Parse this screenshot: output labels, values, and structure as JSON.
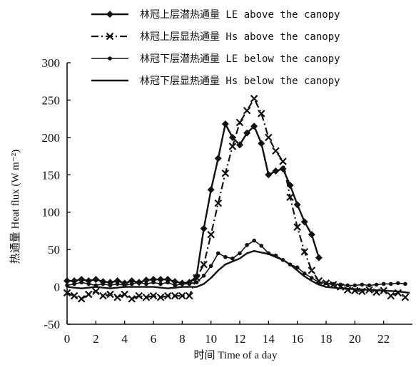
{
  "chart_data": {
    "type": "line",
    "xlabel": "时间 Time of a day",
    "ylabel": "热通量 Heat flux (W m⁻²)",
    "xlim": [
      0,
      24
    ],
    "ylim": [
      -50,
      300
    ],
    "xticks": [
      "0",
      "2",
      "4",
      "6",
      "8",
      "10",
      "12",
      "14",
      "16",
      "18",
      "20",
      "22"
    ],
    "yticks": [
      "300",
      "250",
      "200",
      "150",
      "100",
      "50",
      "0",
      "-50"
    ],
    "legend_position": "top-right",
    "series": [
      {
        "name": "林冠上层潜热通量 LE above the canopy",
        "marker": "diamond",
        "line": "solid",
        "x": [
          0,
          0.5,
          1,
          1.5,
          2,
          2.5,
          3,
          3.5,
          4,
          4.5,
          5,
          5.5,
          6,
          6.5,
          7,
          7.5,
          8,
          8.5,
          9,
          9.5,
          10,
          10.5,
          11,
          11.5,
          12,
          12.5,
          13,
          13.5,
          14,
          14.5,
          15,
          15.5,
          16,
          16.5,
          17,
          17.5
        ],
        "y": [
          8,
          8,
          10,
          8,
          10,
          7,
          6,
          8,
          5,
          8,
          6,
          9,
          10,
          10,
          10,
          7,
          5,
          6,
          14,
          78,
          130,
          172,
          218,
          200,
          190,
          206,
          215,
          192,
          150,
          155,
          158,
          136,
          110,
          87,
          70,
          39
        ]
      },
      {
        "name": "林冠上层显热通量 Hs above the canopy",
        "marker": "x",
        "line": "dash-dot",
        "x": [
          0,
          0.5,
          1,
          1.5,
          2,
          2.5,
          3,
          3.5,
          4,
          4.5,
          5,
          5.5,
          6,
          6.5,
          7,
          7.5,
          8,
          8.5,
          9,
          9.5,
          10,
          10.5,
          11,
          11.5,
          12,
          12.5,
          13,
          13.5,
          14,
          14.5,
          15,
          15.5,
          16,
          16.5,
          17,
          17.5,
          18,
          18.5,
          19,
          19.5,
          20,
          20.5,
          21,
          21.5,
          22,
          22.5,
          23,
          23.5
        ],
        "y": [
          -8,
          -12,
          -16,
          -10,
          -6,
          -12,
          -10,
          -14,
          -10,
          -16,
          -12,
          -14,
          -12,
          -14,
          -12,
          -12,
          -12,
          -12,
          12,
          30,
          70,
          112,
          152,
          188,
          220,
          236,
          252,
          232,
          200,
          182,
          168,
          120,
          80,
          47,
          22,
          8,
          5,
          3,
          0,
          -4,
          -5,
          -6,
          -4,
          -7,
          -5,
          -12,
          -8,
          -14
        ]
      },
      {
        "name": "林冠下层潜热通量 LE below the canopy",
        "marker": "dot",
        "line": "solid",
        "x": [
          0,
          0.5,
          1,
          1.5,
          2,
          2.5,
          3,
          3.5,
          4,
          4.5,
          5,
          5.5,
          6,
          6.5,
          7,
          7.5,
          8,
          8.5,
          9,
          9.5,
          10,
          10.5,
          11,
          11.5,
          12,
          12.5,
          13,
          13.5,
          14,
          14.5,
          15,
          15.5,
          16,
          16.5,
          17,
          17.5,
          18,
          18.5,
          19,
          19.5,
          20,
          20.5,
          21,
          21.5,
          22,
          22.5,
          23,
          23.5
        ],
        "y": [
          2,
          4,
          6,
          4,
          2,
          4,
          2,
          4,
          2,
          4,
          6,
          4,
          6,
          4,
          6,
          2,
          4,
          4,
          6,
          15,
          28,
          45,
          40,
          38,
          45,
          56,
          62,
          55,
          45,
          42,
          36,
          30,
          26,
          18,
          12,
          6,
          5,
          4,
          3,
          2,
          2,
          3,
          2,
          3,
          4,
          4,
          5,
          4
        ]
      },
      {
        "name": "林冠下层显热通量 Hs below the canopy",
        "marker": "none",
        "line": "solid",
        "x": [
          0,
          1,
          2,
          3,
          4,
          5,
          6,
          7,
          8,
          9,
          9.5,
          10,
          10.5,
          11,
          11.5,
          12,
          12.5,
          13,
          13.5,
          14,
          14.5,
          15,
          15.5,
          16,
          16.5,
          17,
          17.5,
          18,
          19,
          20,
          21,
          22,
          23,
          23.8
        ],
        "y": [
          0,
          -2,
          0,
          -2,
          0,
          0,
          0,
          -2,
          0,
          0,
          4,
          12,
          22,
          30,
          34,
          38,
          45,
          48,
          46,
          44,
          40,
          36,
          30,
          22,
          14,
          8,
          3,
          0,
          -2,
          -3,
          -4,
          -5,
          -6,
          -8
        ]
      }
    ]
  }
}
